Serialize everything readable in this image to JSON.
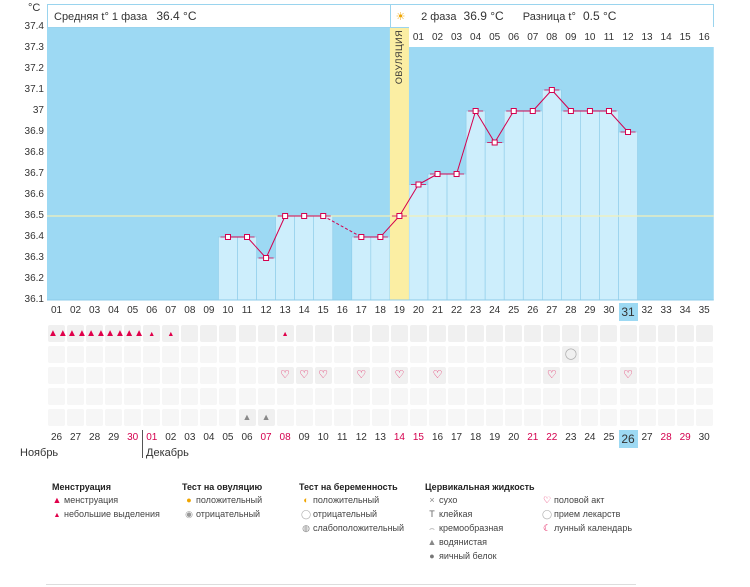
{
  "unit_label": "°C",
  "header": {
    "phase1_label": "Средняя t° 1 фаза",
    "phase1_value": "36.4 °C",
    "phase2_label": "2 фаза",
    "phase2_value": "36.9 °C",
    "diff_label": "Разница t°",
    "diff_value": "0.5 °C"
  },
  "ovulation_label": "ОВУЛЯЦИЯ",
  "chart_data": {
    "type": "line",
    "title": "",
    "ylabel": "°C",
    "ylim": [
      36.1,
      37.4
    ],
    "yticks": [
      "37.4",
      "37.3",
      "37.2",
      "37.1",
      "37",
      "36.9",
      "36.8",
      "36.7",
      "36.6",
      "36.5",
      "36.4",
      "36.3",
      "36.2",
      "36.1"
    ],
    "coverline": 36.5,
    "ovulation_day_index": 18,
    "x": [
      "01",
      "02",
      "03",
      "04",
      "05",
      "06",
      "07",
      "08",
      "09",
      "10",
      "11",
      "12",
      "13",
      "14",
      "15",
      "16",
      "17",
      "18",
      "19",
      "20",
      "21",
      "22",
      "23",
      "24",
      "25",
      "26",
      "27",
      "28",
      "29",
      "30",
      "31",
      "32",
      "33",
      "34",
      "35"
    ],
    "temps": [
      null,
      null,
      null,
      null,
      null,
      null,
      null,
      null,
      null,
      36.4,
      36.4,
      36.3,
      36.5,
      36.5,
      36.5,
      null,
      36.4,
      36.4,
      36.5,
      36.65,
      36.7,
      36.7,
      37.0,
      36.85,
      37.0,
      37.0,
      37.1,
      37.0,
      37.0,
      37.0,
      36.9,
      null,
      null,
      null,
      null
    ],
    "phase2_days_top": [
      "01",
      "02",
      "03",
      "04",
      "05",
      "06",
      "07",
      "08",
      "09",
      "10",
      "11",
      "12",
      "13",
      "14",
      "15",
      "16"
    ]
  },
  "cycle_days": [
    "01",
    "02",
    "03",
    "04",
    "05",
    "06",
    "07",
    "08",
    "09",
    "10",
    "11",
    "12",
    "13",
    "14",
    "15",
    "16",
    "17",
    "18",
    "19",
    "20",
    "21",
    "22",
    "23",
    "24",
    "25",
    "26",
    "27",
    "28",
    "29",
    "30",
    "31",
    "32",
    "33",
    "34",
    "35"
  ],
  "current_cycle_day": "31",
  "dates": [
    "26",
    "27",
    "28",
    "29",
    "30",
    "01",
    "02",
    "03",
    "04",
    "05",
    "06",
    "07",
    "08",
    "09",
    "10",
    "11",
    "12",
    "13",
    "14",
    "15",
    "16",
    "17",
    "18",
    "19",
    "20",
    "21",
    "22",
    "23",
    "24",
    "25",
    "26",
    "27",
    "28",
    "29",
    "30"
  ],
  "dates_red": [
    4,
    5,
    11,
    12,
    18,
    19,
    25,
    26,
    32,
    33
  ],
  "current_date_index": 30,
  "months": {
    "first": "Ноябрь",
    "second": "Декабрь"
  },
  "markers": {
    "menstruation_heavy": [
      0,
      1,
      2,
      3,
      4
    ],
    "menstruation_light": [
      5,
      6,
      12
    ],
    "pregnancy_test": [
      27
    ],
    "intercourse": [
      12,
      13,
      14,
      16,
      18,
      20,
      26,
      30
    ],
    "fluid_watery": [
      10,
      11
    ]
  },
  "legend": {
    "menstruation": {
      "title": "Менструация",
      "items": [
        "менструация",
        "небольшие выделения"
      ]
    },
    "ovulation_test": {
      "title": "Тест на овуляцию",
      "items": [
        "положительный",
        "отрицательный"
      ]
    },
    "pregnancy_test": {
      "title": "Тест на беременность",
      "items": [
        "положительный",
        "отрицательный",
        "слабоположительный"
      ]
    },
    "cervical": {
      "title": "Цервикальная жидкость",
      "items": [
        "сухо",
        "клейкая",
        "кремообразная",
        "водянистая",
        "яичный белок"
      ]
    },
    "other": {
      "items": [
        "половой акт",
        "прием лекарств",
        "лунный календарь"
      ]
    }
  },
  "colors": {
    "plot_bg": "#9dd9f3",
    "bar_fill": "#cdeefc",
    "bar_stroke": "#8ccbe8",
    "line": "#d4004e",
    "ovulation": "#fbeea3",
    "coverline": "#f3f0b8",
    "current_cell": "#9dd9f3"
  }
}
